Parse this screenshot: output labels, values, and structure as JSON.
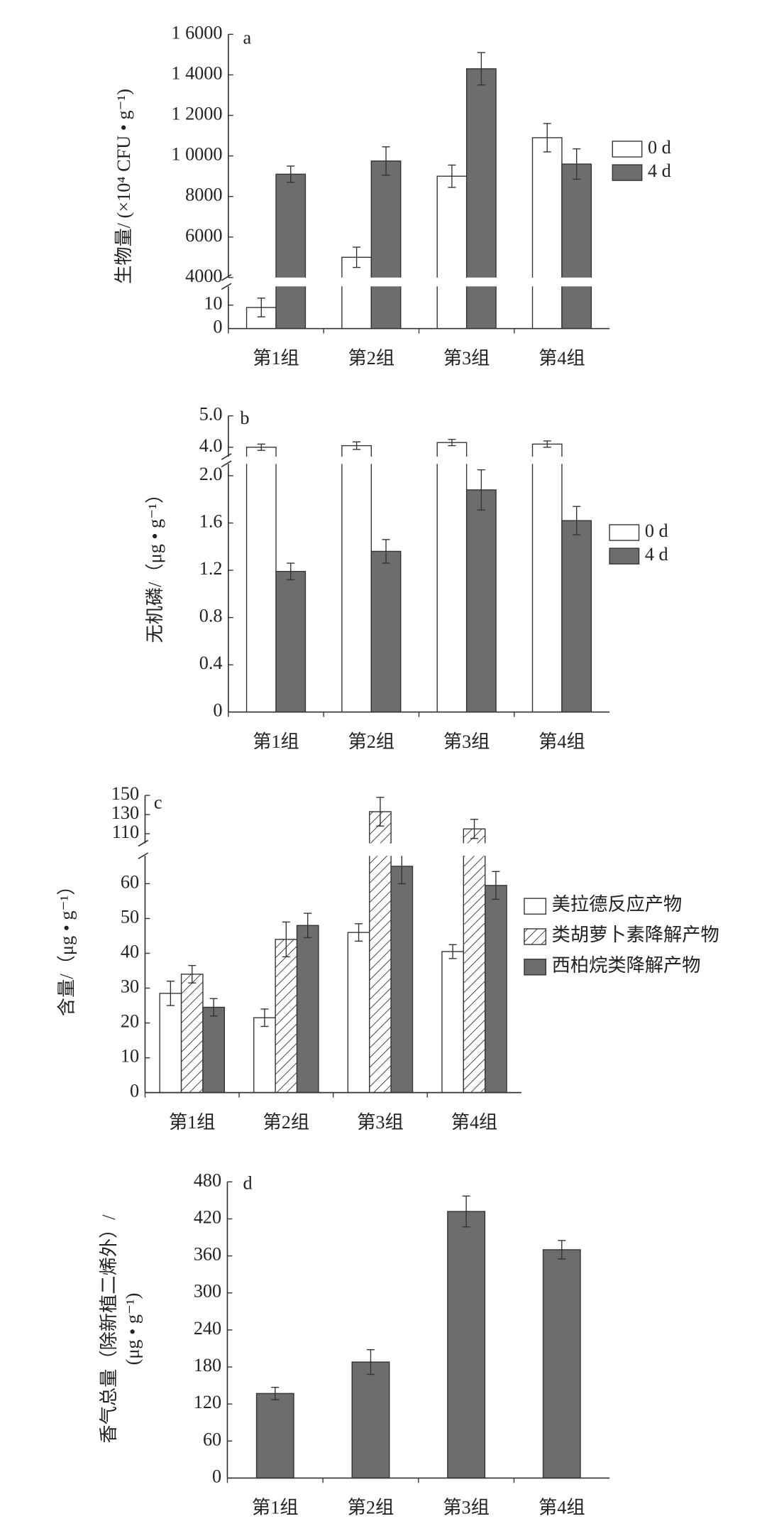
{
  "chart_data": [
    {
      "type": "bar",
      "label": "a",
      "ylabel": [
        "生物量/ (×10⁴ CFU • g⁻¹)"
      ],
      "categories": [
        "第1组",
        "第2组",
        "第3组",
        "第4组"
      ],
      "axis_break": true,
      "ylim": [
        [
          0,
          18
        ],
        [
          4000,
          16000
        ]
      ],
      "yticks": [
        0,
        10,
        4000,
        6000,
        8000,
        {
          "value": 10000,
          "label": "1 0000"
        },
        {
          "value": 12000,
          "label": "1 2000"
        },
        {
          "value": 14000,
          "label": "1 4000"
        },
        {
          "value": 16000,
          "label": "1 6000"
        }
      ],
      "series": [
        {
          "name": "0 d",
          "color": "#ffffff",
          "values": [
            9,
            5000,
            9000,
            10900
          ],
          "errors": [
            4,
            500,
            550,
            700
          ]
        },
        {
          "name": "4 d",
          "color": "#6d6d6d",
          "values": [
            9100,
            9750,
            14300,
            9600
          ],
          "errors": [
            400,
            700,
            800,
            750
          ]
        }
      ],
      "legend": "right"
    },
    {
      "type": "bar",
      "label": "b",
      "ylabel": [
        "无机磷/（μg • g⁻¹）"
      ],
      "categories": [
        "第1组",
        "第2组",
        "第3组",
        "第4组"
      ],
      "axis_break": true,
      "ylim": [
        [
          0,
          2.1
        ],
        [
          3.7,
          5.0
        ]
      ],
      "yticks": [
        0,
        0.4,
        0.8,
        1.2,
        1.6,
        {
          "value": 2.0,
          "label": "2.0"
        },
        {
          "value": 4.0,
          "label": "4.0"
        },
        {
          "value": 5.0,
          "label": "5.0"
        }
      ],
      "series": [
        {
          "name": "0 d",
          "color": "#ffffff",
          "values": [
            4.0,
            4.05,
            4.15,
            4.1
          ],
          "errors": [
            0.1,
            0.12,
            0.1,
            0.1
          ]
        },
        {
          "name": "4 d",
          "color": "#6d6d6d",
          "values": [
            1.19,
            1.36,
            1.88,
            1.62
          ],
          "errors": [
            0.07,
            0.1,
            0.17,
            0.12
          ]
        }
      ],
      "legend": "right"
    },
    {
      "type": "bar",
      "label": "c",
      "ylabel": [
        "含量/（μg • g⁻¹）"
      ],
      "categories": [
        "第1组",
        "第2组",
        "第3组",
        "第4组"
      ],
      "axis_break": true,
      "ylim": [
        [
          0,
          68
        ],
        [
          100,
          150
        ]
      ],
      "yticks": [
        0,
        10,
        20,
        30,
        40,
        50,
        60,
        110,
        130,
        150
      ],
      "series": [
        {
          "name": "美拉德反应产物",
          "color": "#ffffff",
          "values": [
            28.5,
            21.5,
            46,
            40.5
          ],
          "errors": [
            3.5,
            2.5,
            2.5,
            2
          ]
        },
        {
          "name": "类胡萝卜素降解产物",
          "color": "#ffffff",
          "hatch": true,
          "values": [
            34,
            44,
            133,
            115
          ],
          "errors": [
            2.5,
            5,
            15,
            10
          ]
        },
        {
          "name": "西柏烷类降解产物",
          "color": "#6d6d6d",
          "values": [
            24.5,
            48,
            65,
            59.5
          ],
          "errors": [
            2.5,
            3.5,
            5,
            4
          ]
        }
      ],
      "legend": "right"
    },
    {
      "type": "bar",
      "label": "d",
      "ylabel": [
        "香气总量（除新植二烯外）/",
        "(μg • g⁻¹)"
      ],
      "categories": [
        "第1组",
        "第2组",
        "第3组",
        "第4组"
      ],
      "axis_break": false,
      "ylim": [
        [
          0,
          480
        ]
      ],
      "yticks": [
        0,
        60,
        120,
        180,
        240,
        300,
        360,
        420,
        480
      ],
      "series": [
        {
          "color": "#6d6d6d",
          "values": [
            137,
            188,
            432,
            370
          ],
          "errors": [
            10,
            20,
            25,
            15
          ]
        }
      ]
    }
  ]
}
